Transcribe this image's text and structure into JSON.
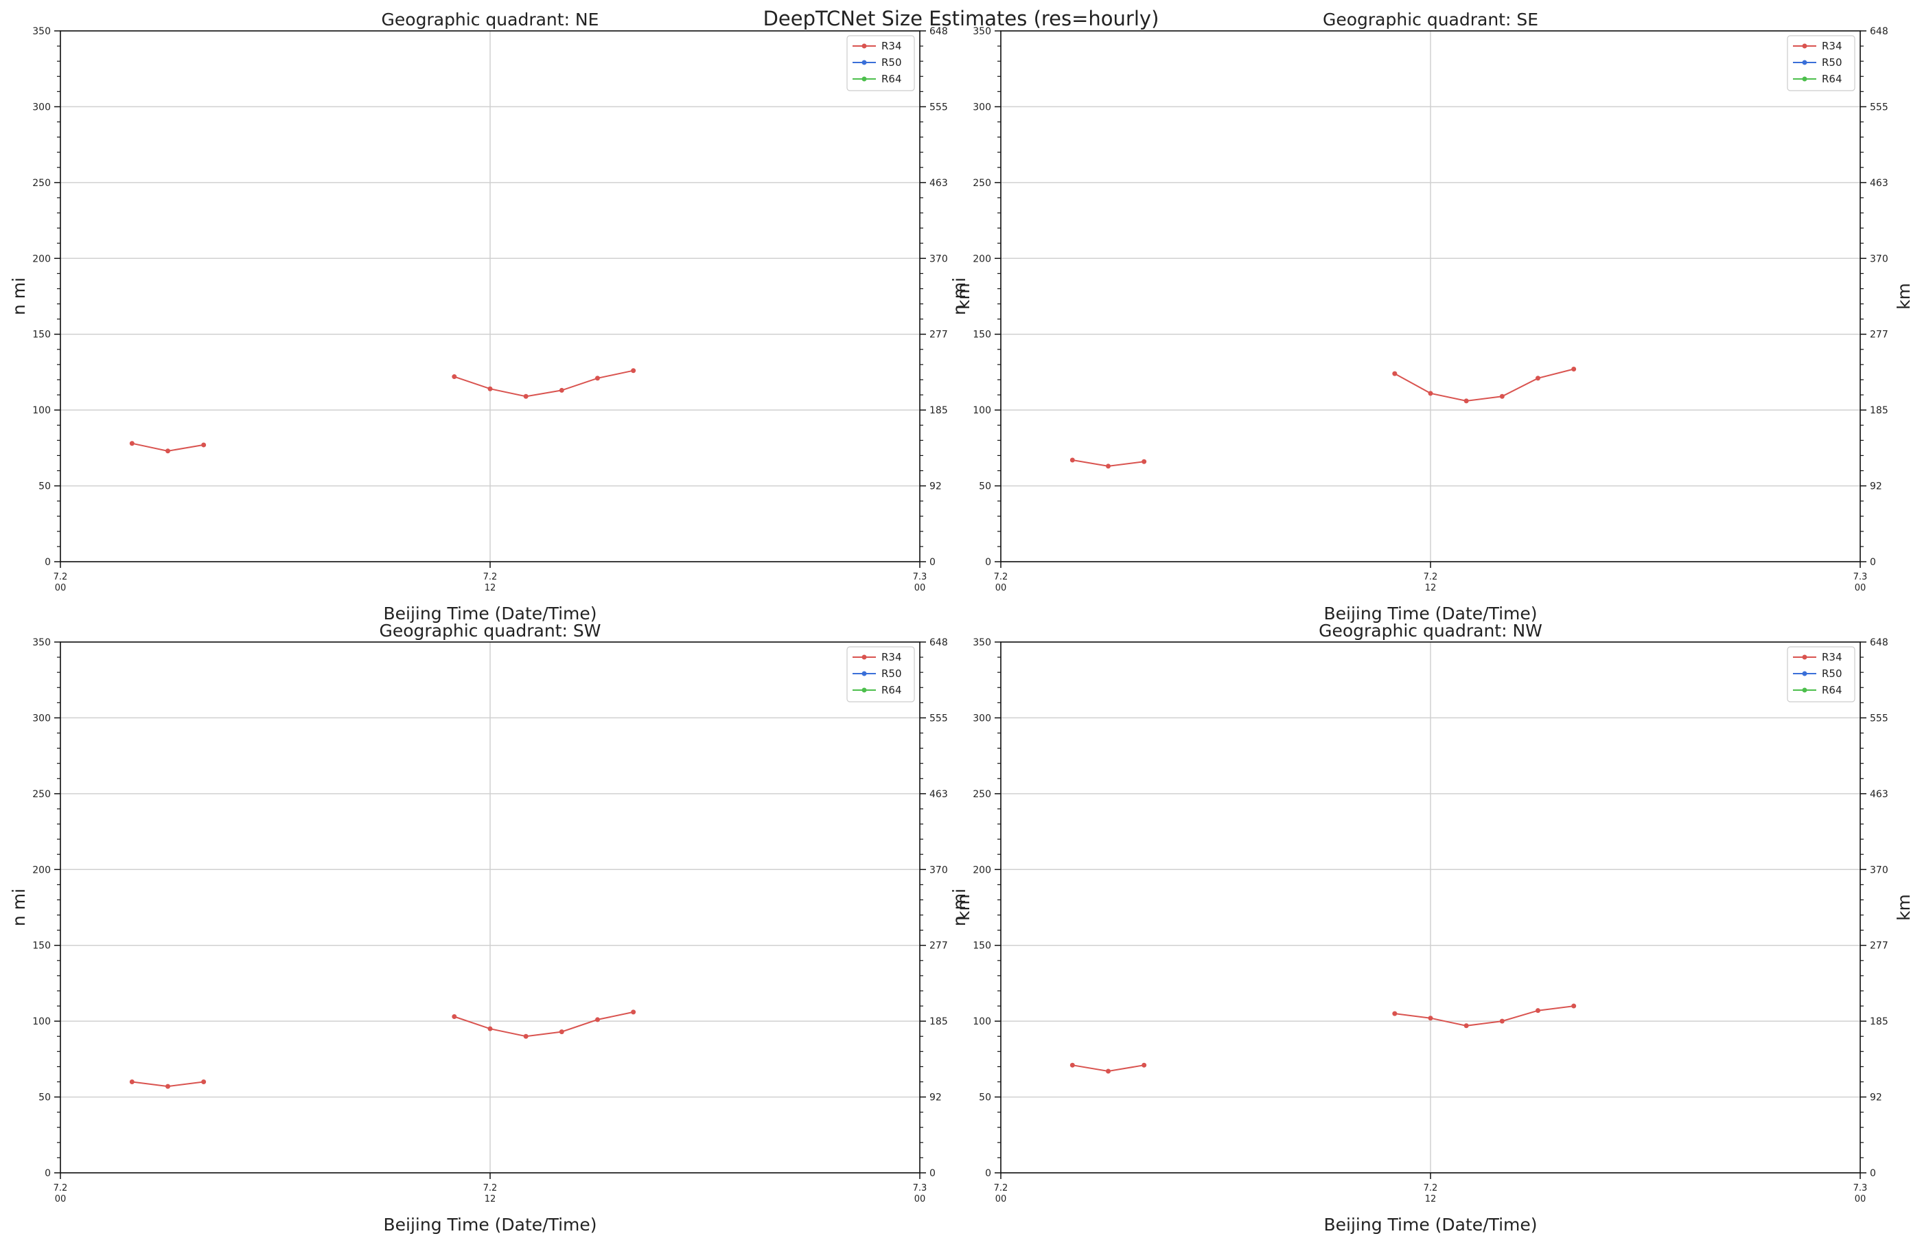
{
  "title": "DeepTCNet Size Estimates (res=hourly)",
  "colors": {
    "R34": "#d9534f",
    "R50": "#3a6fd8",
    "R64": "#4cbf4c",
    "grid": "#d0d0d0",
    "axis": "#111111"
  },
  "legend_placement": "top-right",
  "chart_data": [
    {
      "type": "line",
      "title": "Geographic quadrant: NE",
      "xlabel": "Beijing Time (Date/Time)",
      "ylabel": "n mi",
      "ylabel_right": "km",
      "xlim": [
        0,
        24
      ],
      "ylim": [
        0,
        350
      ],
      "x_ticks": [
        {
          "x": 0,
          "date": "7.2",
          "hour": "00"
        },
        {
          "x": 12,
          "date": "7.2",
          "hour": "12"
        },
        {
          "x": 24,
          "date": "7.3",
          "hour": "00"
        }
      ],
      "y_ticks": [
        0,
        50,
        100,
        150,
        200,
        250,
        300,
        350
      ],
      "y_ticks_right": [
        "0",
        "92",
        "185",
        "277",
        "370",
        "463",
        "555",
        "648"
      ],
      "grid": true,
      "series": [
        {
          "name": "R34",
          "segments": [
            {
              "x": [
                2,
                3,
                4
              ],
              "y": [
                78,
                73,
                77
              ]
            },
            {
              "x": [
                11,
                12,
                13,
                14,
                15,
                16
              ],
              "y": [
                122,
                114,
                109,
                113,
                121,
                126
              ]
            }
          ]
        },
        {
          "name": "R50",
          "segments": []
        },
        {
          "name": "R64",
          "segments": []
        }
      ]
    },
    {
      "type": "line",
      "title": "Geographic quadrant: SE",
      "xlabel": "Beijing Time (Date/Time)",
      "ylabel": "n mi",
      "ylabel_right": "km",
      "xlim": [
        0,
        24
      ],
      "ylim": [
        0,
        350
      ],
      "x_ticks": [
        {
          "x": 0,
          "date": "7.2",
          "hour": "00"
        },
        {
          "x": 12,
          "date": "7.2",
          "hour": "12"
        },
        {
          "x": 24,
          "date": "7.3",
          "hour": "00"
        }
      ],
      "y_ticks": [
        0,
        50,
        100,
        150,
        200,
        250,
        300,
        350
      ],
      "y_ticks_right": [
        "0",
        "92",
        "185",
        "277",
        "370",
        "463",
        "555",
        "648"
      ],
      "grid": true,
      "series": [
        {
          "name": "R34",
          "segments": [
            {
              "x": [
                2,
                3,
                4
              ],
              "y": [
                67,
                63,
                66
              ]
            },
            {
              "x": [
                11,
                12,
                13,
                14,
                15,
                16
              ],
              "y": [
                124,
                111,
                106,
                109,
                121,
                127
              ]
            }
          ]
        },
        {
          "name": "R50",
          "segments": []
        },
        {
          "name": "R64",
          "segments": []
        }
      ]
    },
    {
      "type": "line",
      "title": "Geographic quadrant: SW",
      "xlabel": "Beijing Time (Date/Time)",
      "ylabel": "n mi",
      "ylabel_right": "km",
      "xlim": [
        0,
        24
      ],
      "ylim": [
        0,
        350
      ],
      "x_ticks": [
        {
          "x": 0,
          "date": "7.2",
          "hour": "00"
        },
        {
          "x": 12,
          "date": "7.2",
          "hour": "12"
        },
        {
          "x": 24,
          "date": "7.3",
          "hour": "00"
        }
      ],
      "y_ticks": [
        0,
        50,
        100,
        150,
        200,
        250,
        300,
        350
      ],
      "y_ticks_right": [
        "0",
        "92",
        "185",
        "277",
        "370",
        "463",
        "555",
        "648"
      ],
      "grid": true,
      "series": [
        {
          "name": "R34",
          "segments": [
            {
              "x": [
                2,
                3,
                4
              ],
              "y": [
                60,
                57,
                60
              ]
            },
            {
              "x": [
                11,
                12,
                13,
                14,
                15,
                16
              ],
              "y": [
                103,
                95,
                90,
                93,
                101,
                106
              ]
            }
          ]
        },
        {
          "name": "R50",
          "segments": []
        },
        {
          "name": "R64",
          "segments": []
        }
      ]
    },
    {
      "type": "line",
      "title": "Geographic quadrant: NW",
      "xlabel": "Beijing Time (Date/Time)",
      "ylabel": "n mi",
      "ylabel_right": "km",
      "xlim": [
        0,
        24
      ],
      "ylim": [
        0,
        350
      ],
      "x_ticks": [
        {
          "x": 0,
          "date": "7.2",
          "hour": "00"
        },
        {
          "x": 12,
          "date": "7.2",
          "hour": "12"
        },
        {
          "x": 24,
          "date": "7.3",
          "hour": "00"
        }
      ],
      "y_ticks": [
        0,
        50,
        100,
        150,
        200,
        250,
        300,
        350
      ],
      "y_ticks_right": [
        "0",
        "92",
        "185",
        "277",
        "370",
        "463",
        "555",
        "648"
      ],
      "grid": true,
      "series": [
        {
          "name": "R34",
          "segments": [
            {
              "x": [
                2,
                3,
                4
              ],
              "y": [
                71,
                67,
                71
              ]
            },
            {
              "x": [
                11,
                12,
                13,
                14,
                15,
                16
              ],
              "y": [
                105,
                102,
                97,
                100,
                107,
                110
              ]
            }
          ]
        },
        {
          "name": "R50",
          "segments": []
        },
        {
          "name": "R64",
          "segments": []
        }
      ]
    }
  ]
}
